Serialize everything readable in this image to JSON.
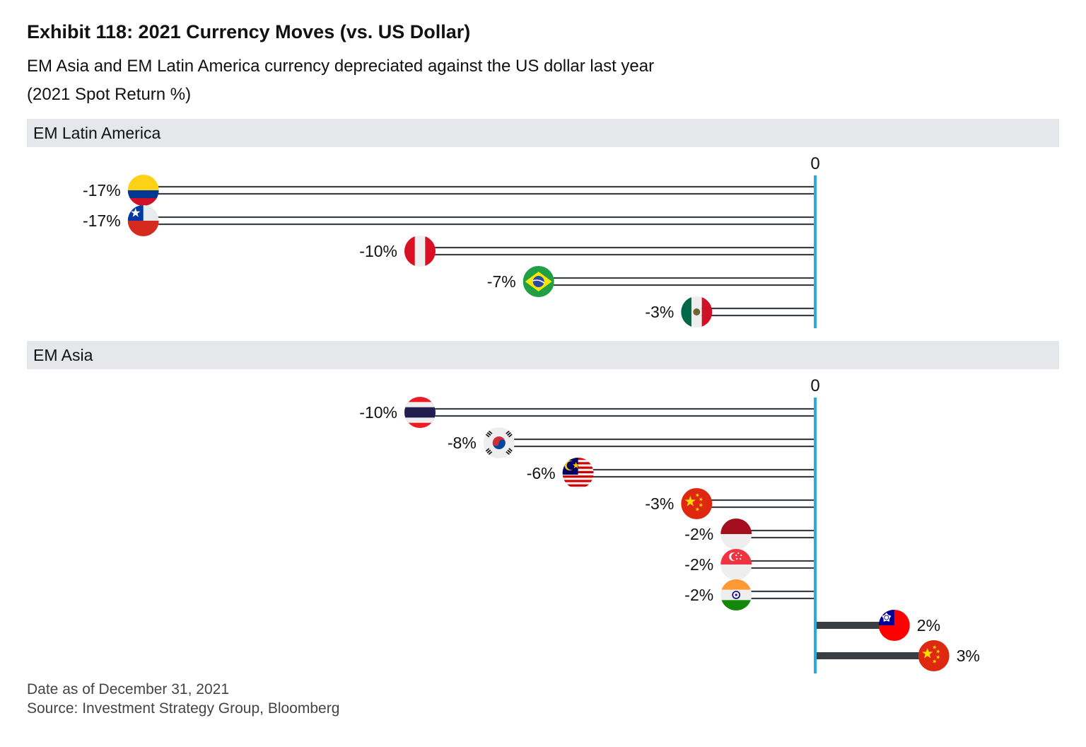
{
  "header": {
    "title": "Exhibit 118: 2021 Currency Moves (vs. US Dollar)",
    "subtitle": "EM Asia and EM Latin America currency depreciated against the US dollar last year",
    "units_note": "(2021 Spot Return %)"
  },
  "footer": {
    "date_note": "Date as of December 31, 2021",
    "source": "Source: Investment Strategy Group, Bloomberg"
  },
  "colors": {
    "zero_line": "#29abe2",
    "bar": "#3a3d42",
    "panel_header_bg": "#e5e7ea"
  },
  "chart_data": [
    {
      "type": "bar",
      "orientation": "horizontal",
      "panel_title": "EM Latin America",
      "zero_label": "0",
      "x_range": [
        -20,
        6
      ],
      "categories": [
        "colombia-flag",
        "chile-flag",
        "peru-flag",
        "brazil-flag",
        "mexico-flag"
      ],
      "values": [
        -17,
        -17,
        -10,
        -7,
        -3
      ],
      "labels": [
        "-17%",
        "-17%",
        "-10%",
        "-7%",
        "-3%"
      ]
    },
    {
      "type": "bar",
      "orientation": "horizontal",
      "panel_title": "EM Asia",
      "zero_label": "0",
      "x_range": [
        -20,
        6
      ],
      "categories": [
        "thailand-flag",
        "south-korea-flag",
        "malaysia-flag",
        "china-flag",
        "indonesia-flag",
        "singapore-flag",
        "india-flag",
        "taiwan-flag",
        "china-flag"
      ],
      "values": [
        -10,
        -8,
        -6,
        -3,
        -2,
        -2,
        -2,
        2,
        3
      ],
      "labels": [
        "-10%",
        "-8%",
        "-6%",
        "-3%",
        "-2%",
        "-2%",
        "-2%",
        "2%",
        "3%"
      ]
    }
  ]
}
